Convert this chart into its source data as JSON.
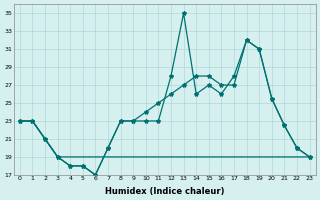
{
  "xlabel": "Humidex (Indice chaleur)",
  "ylabel": "",
  "background_color": "#d6f0f0",
  "grid_color": "#b0d8d8",
  "line_color": "#007070",
  "xlim": [
    -0.5,
    23.5
  ],
  "ylim": [
    17,
    36
  ],
  "yticks": [
    17,
    19,
    21,
    23,
    25,
    27,
    29,
    31,
    33,
    35
  ],
  "xticks": [
    0,
    1,
    2,
    3,
    4,
    5,
    6,
    7,
    8,
    9,
    10,
    11,
    12,
    13,
    14,
    15,
    16,
    17,
    18,
    19,
    20,
    21,
    22,
    23
  ],
  "line1_x": [
    0,
    1,
    2,
    3,
    4,
    5,
    6,
    7,
    8,
    9,
    10,
    11,
    12,
    13,
    14,
    15,
    16,
    17,
    18,
    19,
    20,
    21,
    22,
    23
  ],
  "line1_y": [
    23,
    23,
    21,
    19,
    18,
    18,
    17,
    20,
    23,
    23,
    23,
    23,
    28,
    35,
    26,
    27,
    26,
    28,
    32,
    31,
    25.5,
    22.5,
    20,
    19
  ],
  "line2_x": [
    0,
    1,
    2,
    3,
    4,
    5,
    6,
    7,
    8,
    9,
    10,
    11,
    12,
    13,
    14,
    15,
    16,
    17,
    18,
    19,
    20,
    21,
    22,
    23
  ],
  "line2_y": [
    23,
    23,
    21,
    19,
    18,
    18,
    17,
    20,
    23,
    23,
    24,
    25,
    26,
    27,
    28,
    28,
    27,
    27,
    32,
    31,
    25.5,
    22.5,
    20,
    19
  ],
  "line3_x": [
    0,
    1,
    2,
    3,
    4,
    5,
    6,
    7,
    8,
    9,
    10,
    11,
    12,
    13,
    14,
    15,
    16,
    17,
    18,
    19,
    20,
    21,
    22,
    23
  ],
  "line3_y": [
    23,
    23,
    21,
    19,
    19,
    19,
    19,
    19,
    19,
    19,
    19,
    19,
    19,
    19,
    19,
    19,
    19,
    19,
    19,
    19,
    19,
    19,
    19,
    19
  ],
  "figsize": [
    3.2,
    2.0
  ],
  "dpi": 100
}
